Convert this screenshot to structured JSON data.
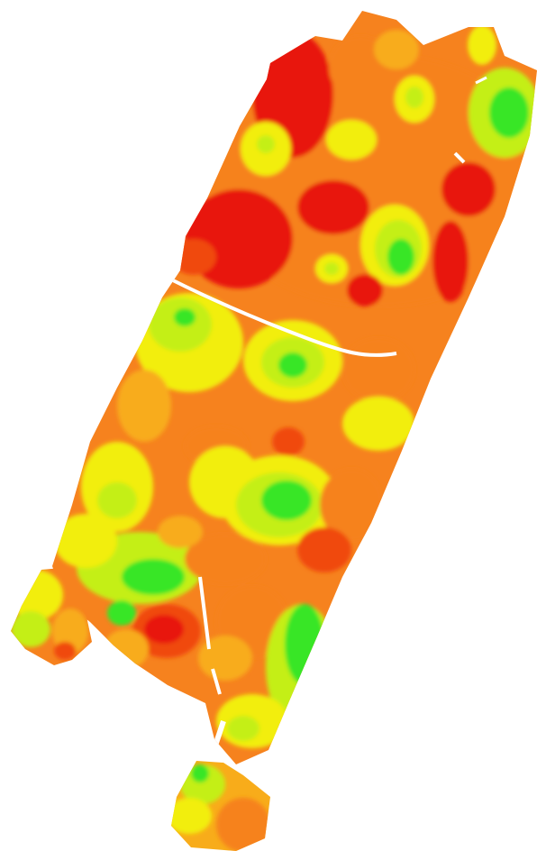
{
  "map": {
    "type": "field-heatmap",
    "palette": {
      "red": "#e8140c",
      "red_orange": "#f04a10",
      "orange": "#f6821e",
      "orange_yellow": "#f8ac1a",
      "yellow": "#f2ee10",
      "yellow_green": "#c4ef14",
      "green": "#38e628",
      "background": "#ffffff"
    }
  }
}
